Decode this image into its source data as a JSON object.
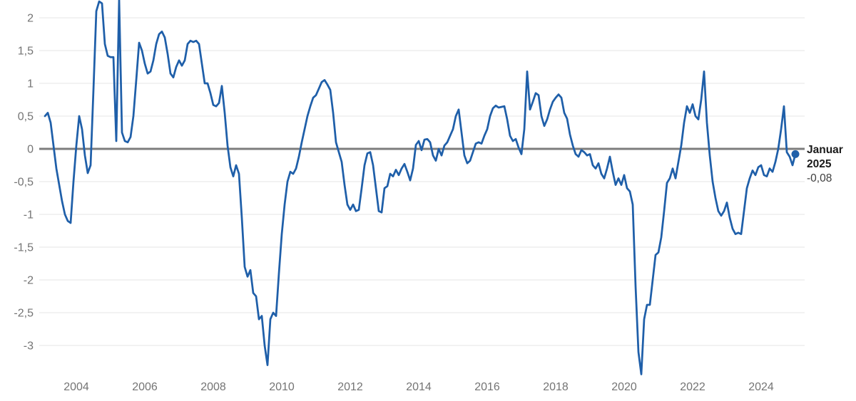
{
  "chart_data": {
    "type": "line",
    "frequency": "monthly",
    "x_start": {
      "year": 2003,
      "month": 2
    },
    "x_end": {
      "year": 2025,
      "month": 1
    },
    "x_tick_years": [
      2004,
      2006,
      2008,
      2010,
      2012,
      2014,
      2016,
      2018,
      2020,
      2022,
      2024
    ],
    "y_ticks": [
      {
        "value": 2,
        "label": "2"
      },
      {
        "value": 1.5,
        "label": "1,5"
      },
      {
        "value": 1,
        "label": "1"
      },
      {
        "value": 0.5,
        "label": "0,5"
      },
      {
        "value": 0,
        "label": "0"
      },
      {
        "value": -0.5,
        "label": "-0,5"
      },
      {
        "value": -1,
        "label": "-1"
      },
      {
        "value": -1.5,
        "label": "-1,5"
      },
      {
        "value": -2,
        "label": "-2"
      },
      {
        "value": -2.5,
        "label": "-2,5"
      },
      {
        "value": -3,
        "label": "-3"
      }
    ],
    "ylim": [
      -3.6,
      2.3
    ],
    "grid": "horizontal",
    "zero_line": true,
    "legend": "none",
    "monthly_values": [
      0.5,
      0.55,
      0.4,
      0.05,
      -0.3,
      -0.55,
      -0.8,
      -1.0,
      -1.1,
      -1.13,
      -0.5,
      0.05,
      0.5,
      0.3,
      -0.1,
      -0.37,
      -0.25,
      0.9,
      2.1,
      2.25,
      2.22,
      1.6,
      1.42,
      1.4,
      1.4,
      0.12,
      2.28,
      0.25,
      0.12,
      0.1,
      0.18,
      0.5,
      1.05,
      1.62,
      1.5,
      1.3,
      1.15,
      1.18,
      1.35,
      1.6,
      1.75,
      1.79,
      1.7,
      1.45,
      1.15,
      1.09,
      1.25,
      1.35,
      1.27,
      1.35,
      1.6,
      1.65,
      1.63,
      1.65,
      1.6,
      1.3,
      1.0,
      1.0,
      0.85,
      0.67,
      0.65,
      0.7,
      0.96,
      0.55,
      0.05,
      -0.28,
      -0.42,
      -0.25,
      -0.38,
      -1.05,
      -1.8,
      -1.95,
      -1.85,
      -2.2,
      -2.25,
      -2.6,
      -2.55,
      -3.0,
      -3.3,
      -2.6,
      -2.5,
      -2.55,
      -1.9,
      -1.3,
      -0.85,
      -0.5,
      -0.35,
      -0.38,
      -0.3,
      -0.12,
      0.1,
      0.3,
      0.5,
      0.65,
      0.78,
      0.82,
      0.92,
      1.02,
      1.05,
      0.98,
      0.9,
      0.55,
      0.1,
      -0.05,
      -0.2,
      -0.55,
      -0.85,
      -0.93,
      -0.85,
      -0.95,
      -0.93,
      -0.6,
      -0.25,
      -0.07,
      -0.05,
      -0.25,
      -0.6,
      -0.95,
      -0.97,
      -0.6,
      -0.57,
      -0.38,
      -0.42,
      -0.32,
      -0.4,
      -0.3,
      -0.23,
      -0.35,
      -0.48,
      -0.3,
      0.06,
      0.12,
      -0.02,
      0.14,
      0.15,
      0.1,
      -0.1,
      -0.18,
      0.0,
      -0.1,
      0.05,
      0.1,
      0.2,
      0.3,
      0.5,
      0.6,
      0.25,
      -0.1,
      -0.22,
      -0.18,
      -0.05,
      0.08,
      0.1,
      0.08,
      0.2,
      0.3,
      0.5,
      0.62,
      0.66,
      0.63,
      0.64,
      0.65,
      0.45,
      0.2,
      0.12,
      0.15,
      0.02,
      -0.08,
      0.3,
      1.18,
      0.6,
      0.72,
      0.85,
      0.82,
      0.5,
      0.35,
      0.45,
      0.6,
      0.72,
      0.78,
      0.83,
      0.78,
      0.55,
      0.46,
      0.22,
      0.05,
      -0.08,
      -0.12,
      -0.02,
      -0.05,
      -0.1,
      -0.08,
      -0.25,
      -0.3,
      -0.22,
      -0.38,
      -0.45,
      -0.3,
      -0.12,
      -0.35,
      -0.55,
      -0.45,
      -0.55,
      -0.4,
      -0.6,
      -0.65,
      -0.85,
      -2.1,
      -3.1,
      -3.44,
      -2.6,
      -2.38,
      -2.38,
      -2.0,
      -1.62,
      -1.58,
      -1.35,
      -0.95,
      -0.52,
      -0.45,
      -0.3,
      -0.45,
      -0.2,
      0.05,
      0.4,
      0.65,
      0.55,
      0.68,
      0.5,
      0.45,
      0.75,
      1.18,
      0.4,
      -0.1,
      -0.5,
      -0.75,
      -0.95,
      -1.02,
      -0.95,
      -0.82,
      -1.05,
      -1.22,
      -1.3,
      -1.28,
      -1.3,
      -0.95,
      -0.6,
      -0.45,
      -0.33,
      -0.4,
      -0.28,
      -0.25,
      -0.4,
      -0.42,
      -0.3,
      -0.35,
      -0.2,
      0.0,
      0.3,
      0.65,
      -0.05,
      -0.12,
      -0.25,
      -0.08
    ],
    "last_point": {
      "label_month": "Januar",
      "label_year": "2025",
      "value": -0.08,
      "value_label": "-0,08"
    },
    "colors": {
      "line": "#1f5fa9",
      "marker": "#1f5fa9",
      "zero_line": "#7d7d7d",
      "grid": "#e6e6e6",
      "tick_label": "#747474",
      "annotation_title": "#1a1a1a",
      "annotation_value": "#3d3d3d",
      "background": "#ffffff"
    }
  }
}
